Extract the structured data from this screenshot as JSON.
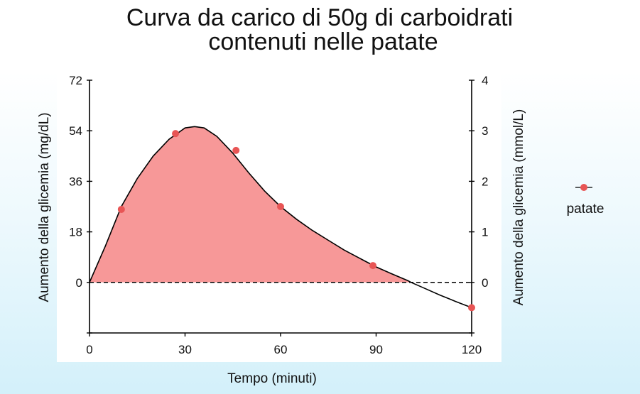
{
  "chart_data": {
    "type": "area",
    "title_lines": [
      "Curva da carico di 50g di carboidrati",
      "contenuti nelle patate"
    ],
    "xlabel": "Tempo (minuti)",
    "ylabel": "Aumento della glicemia (mg/dL)",
    "ylabel_right": "Aumento della glicemia (mmol/L)",
    "xlim": [
      0,
      120
    ],
    "ylim": [
      -18,
      72
    ],
    "ylim_right": [
      -1,
      4
    ],
    "x_ticks": [
      "0",
      "30",
      "60",
      "90",
      "120"
    ],
    "y_ticks": [
      "0",
      "18",
      "36",
      "54",
      "72"
    ],
    "y_ticks_right": [
      "0",
      "1",
      "2",
      "3",
      "4"
    ],
    "series": [
      {
        "name": "patate",
        "x": [
          10,
          27,
          46,
          60,
          89,
          120
        ],
        "y": [
          26,
          53,
          47,
          27,
          6,
          -9
        ]
      }
    ],
    "curve": {
      "x": [
        0,
        5,
        10,
        15,
        20,
        25,
        30,
        33,
        36,
        40,
        45,
        50,
        55,
        60,
        65,
        70,
        75,
        80,
        85,
        90,
        95,
        100,
        101,
        105,
        110,
        115,
        120
      ],
      "y": [
        0,
        13,
        27,
        37,
        45,
        51,
        55,
        55.5,
        55,
        52,
        46,
        39,
        32.5,
        27,
        22.5,
        18.5,
        15,
        11.5,
        8.5,
        5.5,
        3,
        0.6,
        0,
        -2,
        -4.5,
        -6.8,
        -9
      ]
    },
    "baseline": 0,
    "legend_position": "right",
    "colors": {
      "marker": "#e85555",
      "fill": "#f79898",
      "line": "#000000"
    }
  }
}
